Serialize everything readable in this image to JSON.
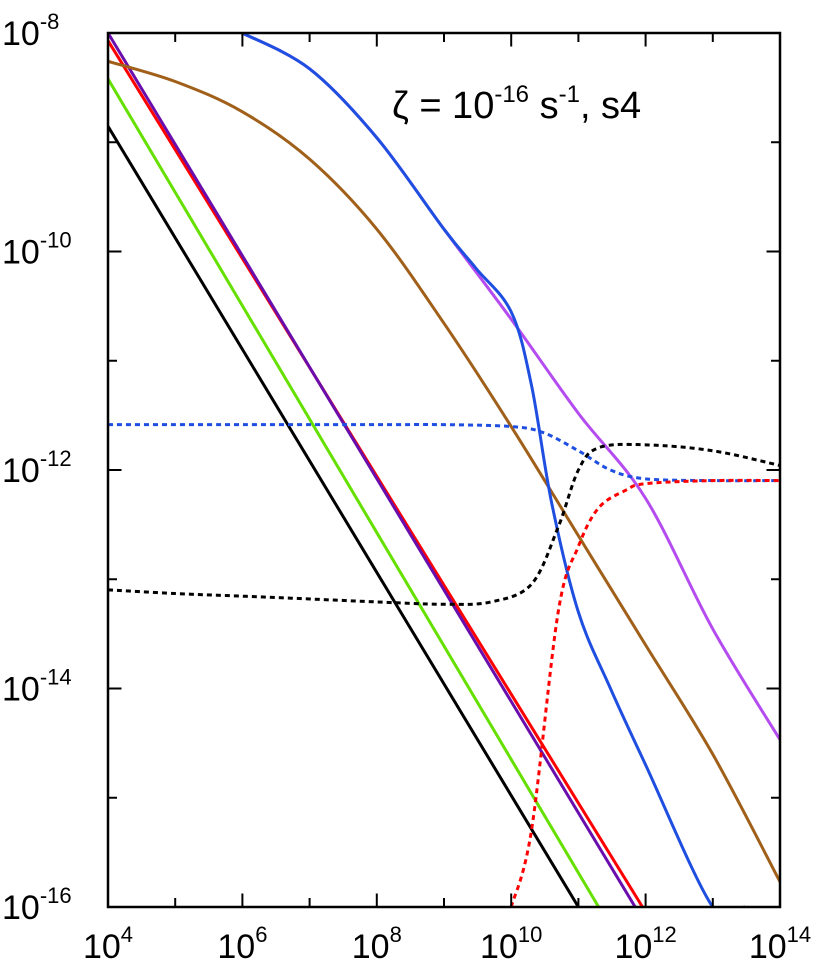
{
  "chart_data": {
    "type": "line",
    "xscale": "log",
    "yscale": "log",
    "xlim": [
      10000,
      100000000000000
    ],
    "ylim": [
      1e-16,
      1e-08
    ],
    "grid": false,
    "x_ticks": [
      {
        "value": 10000,
        "base": "10",
        "exp": "4"
      },
      {
        "value": 1000000,
        "base": "10",
        "exp": "6"
      },
      {
        "value": 100000000,
        "base": "10",
        "exp": "8"
      },
      {
        "value": 10000000000,
        "base": "10",
        "exp": "10"
      },
      {
        "value": 1000000000000,
        "base": "10",
        "exp": "12"
      },
      {
        "value": 100000000000000,
        "base": "10",
        "exp": "14"
      }
    ],
    "y_ticks": [
      {
        "value": 1e-08,
        "base": "10",
        "exp": "-8"
      },
      {
        "value": 1e-10,
        "base": "10",
        "exp": "-10"
      },
      {
        "value": 1e-12,
        "base": "10",
        "exp": "-12"
      },
      {
        "value": 1e-14,
        "base": "10",
        "exp": "-14"
      },
      {
        "value": 1e-16,
        "base": "10",
        "exp": "-16"
      }
    ],
    "annotation": {
      "zeta": "ζ = 10",
      "zeta_exp": "-16",
      "units": " s",
      "units_exp": "-1",
      "suffix": ", s4"
    },
    "series": [
      {
        "color": "#000000",
        "style": "solid",
        "x": [
          10000,
          100000000000
        ],
        "y": [
          1.4e-09,
          1e-16
        ]
      },
      {
        "color": "#66e000",
        "style": "solid",
        "x": [
          10000,
          200000000000
        ],
        "y": [
          3.8e-09,
          1e-16
        ]
      },
      {
        "color": "#ff0000",
        "style": "solid",
        "x": [
          10000,
          900000000000
        ],
        "y": [
          8.5e-09,
          1e-16
        ]
      },
      {
        "color": "#6a0dad",
        "style": "solid",
        "x": [
          10000,
          700000000000
        ],
        "y": [
          1e-08,
          1e-16
        ]
      },
      {
        "color": "#a0601a",
        "style": "solid",
        "x": [
          10000,
          100000,
          1000000,
          10000000,
          100000000,
          1000000000,
          10000000000,
          100000000000,
          1000000000000,
          10000000000000,
          100000000000000
        ],
        "y": [
          5.5e-09,
          3.6e-09,
          1.9e-09,
          7e-10,
          1.6e-10,
          2.2e-11,
          2.5e-12,
          2.5e-13,
          2.5e-14,
          2.5e-15,
          1.7e-16
        ]
      },
      {
        "color": "#b44cf0",
        "style": "solid",
        "x": [
          1000000,
          10000000,
          100000000,
          1000000000,
          10000000000,
          100000000000,
          1000000000000,
          10000000000000,
          100000000000000
        ],
        "y": [
          1e-08,
          4.7e-09,
          1.1e-09,
          1.6e-10,
          2.4e-11,
          3.3e-12,
          5.5e-13,
          3.5e-14,
          3.4e-15
        ]
      },
      {
        "color": "#1f4fe0",
        "style": "solid",
        "x": [
          1000000,
          10000000,
          100000000,
          1000000000,
          3000000000,
          10000000000,
          20000000000,
          40000000000,
          100000000000,
          300000000000,
          1000000000000,
          10000000000000,
          30000000000000
        ],
        "y": [
          1e-08,
          4.7e-09,
          1.1e-09,
          1.6e-10,
          7e-11,
          2.8e-11,
          6e-12,
          5e-13,
          5e-14,
          1e-14,
          2e-15,
          1e-16,
          1e-16
        ]
      },
      {
        "color": "#1f4fe0",
        "style": "dashed",
        "x": [
          10000,
          1000000,
          100000000,
          1000000000,
          10000000000,
          30000000000,
          100000000000,
          300000000000,
          1000000000000,
          10000000000000,
          100000000000000
        ],
        "y": [
          2.6e-12,
          2.6e-12,
          2.6e-12,
          2.6e-12,
          2.5e-12,
          2.2e-12,
          1.5e-12,
          1e-12,
          8.3e-13,
          8e-13,
          8e-13
        ]
      },
      {
        "color": "#000000",
        "style": "dashed",
        "x": [
          10000,
          100000,
          1000000,
          10000000,
          100000000,
          1000000000,
          5000000000,
          20000000000,
          50000000000,
          100000000000,
          200000000000,
          1000000000000,
          10000000000000,
          100000000000000
        ],
        "y": [
          8e-14,
          7.4e-14,
          7e-14,
          6.6e-14,
          6.2e-14,
          5.9e-14,
          6.2e-14,
          9e-14,
          3e-13,
          1e-12,
          1.6e-12,
          1.7e-12,
          1.5e-12,
          1.1e-12
        ]
      },
      {
        "color": "#ff0000",
        "style": "dashed",
        "x": [
          10000000000,
          20000000000,
          50000000000,
          100000000000,
          200000000000,
          500000000000,
          1000000000000,
          10000000000000,
          100000000000000
        ],
        "y": [
          1e-16,
          5e-16,
          5e-14,
          2e-13,
          4.5e-13,
          6.5e-13,
          7.5e-13,
          8e-13,
          8e-13
        ]
      }
    ]
  }
}
